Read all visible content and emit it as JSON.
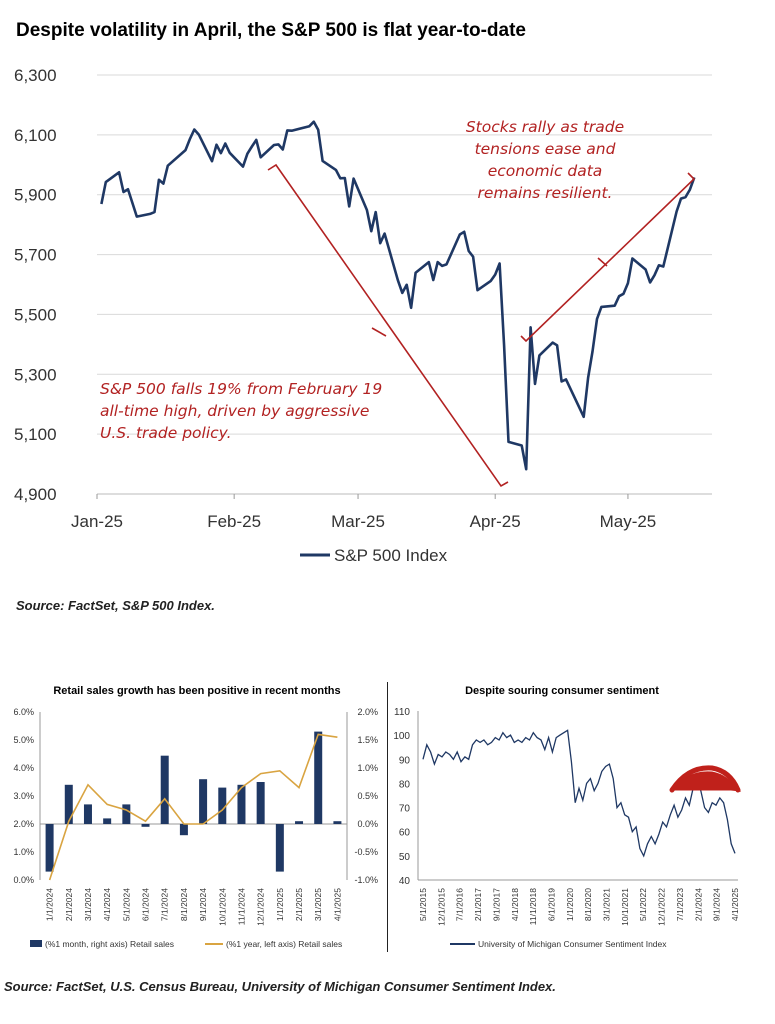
{
  "title": "Despite volatility in April, the S&P 500 is flat year-to-date",
  "annotations": {
    "rally": [
      "Stocks rally as trade",
      "tensions ease and",
      "economic data",
      "remains resilient."
    ],
    "fall": [
      "S&P 500 falls 19% from February 19",
      "all-time high, driven by aggressive",
      "U.S. trade policy."
    ]
  },
  "source1": "Source: FactSet, S&P 500 Index.",
  "source2": "Source: FactSet, U.S. Census Bureau, University of Michigan Consumer Sentiment Index.",
  "colors": {
    "navy": "#1f3864",
    "gold": "#d9a441",
    "red": "#b22222",
    "grid": "#d9d9d9"
  },
  "chart_data": [
    {
      "type": "line",
      "title": "Despite volatility in April, the S&P 500 is flat year-to-date",
      "xlabel": "",
      "ylabel": "",
      "x_ticks": [
        "Jan-25",
        "Feb-25",
        "Mar-25",
        "Apr-25",
        "May-25"
      ],
      "y_ticks": [
        "4,900",
        "5,100",
        "5,300",
        "5,500",
        "5,700",
        "5,900",
        "6,100",
        "6,300"
      ],
      "ylim": [
        4900,
        6300
      ],
      "grid": true,
      "legend": "bottom",
      "series": [
        {
          "name": "S&P 500 Index",
          "x": [
            "2025-01-02",
            "2025-01-03",
            "2025-01-06",
            "2025-01-07",
            "2025-01-08",
            "2025-01-10",
            "2025-01-13",
            "2025-01-14",
            "2025-01-15",
            "2025-01-16",
            "2025-01-17",
            "2025-01-21",
            "2025-01-22",
            "2025-01-23",
            "2025-01-24",
            "2025-01-27",
            "2025-01-28",
            "2025-01-29",
            "2025-01-30",
            "2025-01-31",
            "2025-02-03",
            "2025-02-04",
            "2025-02-05",
            "2025-02-06",
            "2025-02-07",
            "2025-02-10",
            "2025-02-11",
            "2025-02-12",
            "2025-02-13",
            "2025-02-14",
            "2025-02-18",
            "2025-02-19",
            "2025-02-20",
            "2025-02-21",
            "2025-02-24",
            "2025-02-25",
            "2025-02-26",
            "2025-02-27",
            "2025-02-28",
            "2025-03-03",
            "2025-03-04",
            "2025-03-05",
            "2025-03-06",
            "2025-03-07",
            "2025-03-10",
            "2025-03-11",
            "2025-03-12",
            "2025-03-13",
            "2025-03-14",
            "2025-03-17",
            "2025-03-18",
            "2025-03-19",
            "2025-03-20",
            "2025-03-21",
            "2025-03-24",
            "2025-03-25",
            "2025-03-26",
            "2025-03-27",
            "2025-03-28",
            "2025-03-31",
            "2025-04-01",
            "2025-04-02",
            "2025-04-03",
            "2025-04-04",
            "2025-04-07",
            "2025-04-08",
            "2025-04-09",
            "2025-04-10",
            "2025-04-11",
            "2025-04-14",
            "2025-04-15",
            "2025-04-16",
            "2025-04-17",
            "2025-04-21",
            "2025-04-22",
            "2025-04-23",
            "2025-04-24",
            "2025-04-25",
            "2025-04-28",
            "2025-04-29",
            "2025-04-30",
            "2025-05-01",
            "2025-05-02",
            "2025-05-05",
            "2025-05-06",
            "2025-05-07",
            "2025-05-08",
            "2025-05-09",
            "2025-05-12",
            "2025-05-13",
            "2025-05-14",
            "2025-05-15",
            "2025-05-16"
          ],
          "values": [
            5869,
            5942,
            5975,
            5909,
            5918,
            5827,
            5836,
            5842,
            5950,
            5937,
            5997,
            6049,
            6086,
            6118,
            6101,
            6012,
            6067,
            6039,
            6071,
            6040,
            5994,
            6037,
            6061,
            6083,
            6025,
            6066,
            6068,
            6051,
            6115,
            6114,
            6129,
            6144,
            6117,
            6013,
            5983,
            5955,
            5956,
            5861,
            5954,
            5849,
            5778,
            5842,
            5738,
            5770,
            5614,
            5572,
            5599,
            5522,
            5639,
            5675,
            5615,
            5675,
            5662,
            5667,
            5767,
            5776,
            5712,
            5693,
            5581,
            5612,
            5633,
            5670,
            5396,
            5074,
            5062,
            4983,
            5457,
            5268,
            5363,
            5406,
            5397,
            5276,
            5283,
            5158,
            5288,
            5376,
            5485,
            5525,
            5529,
            5561,
            5569,
            5604,
            5687,
            5650,
            5607,
            5631,
            5664,
            5660,
            5844,
            5887,
            5892,
            5917,
            5958
          ]
        }
      ]
    },
    {
      "type": "bar",
      "title": "Retail sales growth has been positive in recent months",
      "categories": [
        "1/1/2024",
        "2/1/2024",
        "3/1/2024",
        "4/1/2024",
        "5/1/2024",
        "6/1/2024",
        "7/1/2024",
        "8/1/2024",
        "9/1/2024",
        "10/1/2024",
        "11/1/2024",
        "12/1/2024",
        "1/1/2025",
        "2/1/2025",
        "3/1/2025",
        "4/1/2025"
      ],
      "y_left_ticks": [
        "0.0%",
        "1.0%",
        "2.0%",
        "3.0%",
        "4.0%",
        "5.0%",
        "6.0%"
      ],
      "y_right_ticks": [
        "-1.0%",
        "-0.5%",
        "0.0%",
        "0.5%",
        "1.0%",
        "1.5%",
        "2.0%"
      ],
      "ylim_left": [
        0,
        6
      ],
      "ylim_right": [
        -1,
        2
      ],
      "legend": "bottom",
      "series": [
        {
          "name": "(%1 month, right axis) Retail sales",
          "axis": "right",
          "type": "bar",
          "values": [
            -0.85,
            0.7,
            0.35,
            0.1,
            0.35,
            -0.05,
            1.22,
            -0.2,
            0.8,
            0.65,
            0.7,
            0.75,
            -0.85,
            0.05,
            1.65,
            0.05
          ]
        },
        {
          "name": "(%1 year, left axis) Retail sales",
          "axis": "left",
          "type": "line",
          "values": [
            0.0,
            2.1,
            3.4,
            2.7,
            2.5,
            2.1,
            2.9,
            2.0,
            2.0,
            2.5,
            3.3,
            3.8,
            3.9,
            3.3,
            5.2,
            5.1
          ]
        }
      ]
    },
    {
      "type": "line",
      "title": "Despite souring consumer sentiment",
      "x_ticks": [
        "5/1/2015",
        "12/1/2015",
        "7/1/2016",
        "2/1/2017",
        "9/1/2017",
        "4/1/2018",
        "11/1/2018",
        "6/1/2019",
        "1/1/2020",
        "8/1/2020",
        "3/1/2021",
        "10/1/2021",
        "5/1/2022",
        "12/1/2022",
        "7/1/2023",
        "2/1/2024",
        "9/1/2024",
        "4/1/2025"
      ],
      "y_ticks": [
        "40",
        "50",
        "60",
        "70",
        "80",
        "90",
        "100",
        "110"
      ],
      "ylim": [
        40,
        110
      ],
      "legend": "bottom",
      "series": [
        {
          "name": "University of Michigan Consumer Sentiment Index",
          "values": [
            90,
            96,
            93,
            88,
            92,
            91,
            93,
            92,
            90,
            93,
            89,
            91,
            90,
            96,
            98,
            97,
            98,
            96,
            97,
            99,
            98,
            101,
            99,
            100,
            97,
            98,
            97,
            99,
            98,
            101,
            99,
            98,
            94,
            99,
            93,
            99,
            100,
            101,
            102,
            89,
            72,
            78,
            73,
            80,
            82,
            77,
            80,
            85,
            87,
            88,
            82,
            70,
            72,
            67,
            66,
            60,
            62,
            53,
            50,
            55,
            58,
            55,
            59,
            64,
            62,
            67,
            71,
            66,
            69,
            74,
            71,
            78,
            80,
            77,
            70,
            68,
            72,
            71,
            74,
            72,
            65,
            55,
            51
          ]
        }
      ]
    }
  ]
}
